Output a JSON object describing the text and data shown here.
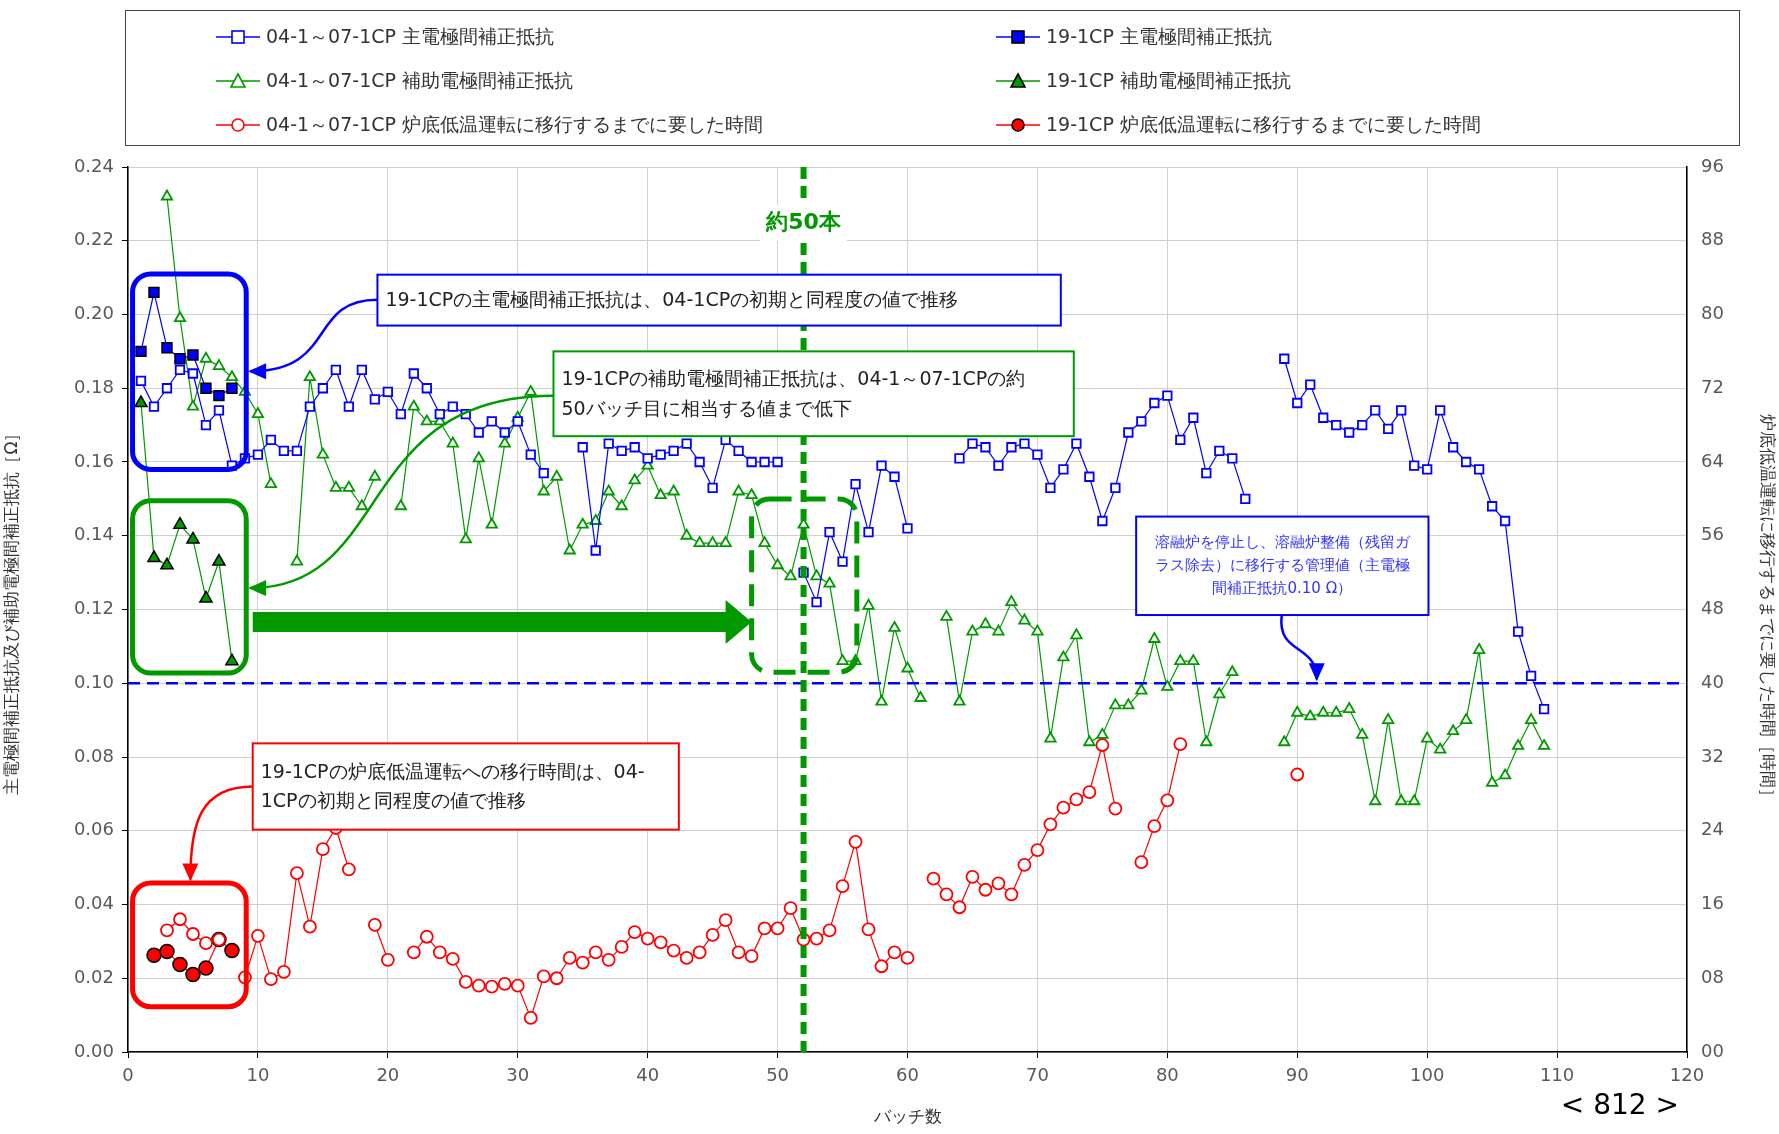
{
  "chart_data": {
    "type": "line",
    "x": [
      1,
      2,
      3,
      4,
      5,
      6,
      7,
      8,
      9,
      10,
      11,
      12,
      13,
      14,
      15,
      16,
      17,
      18,
      19,
      20,
      21,
      22,
      23,
      24,
      25,
      26,
      27,
      28,
      29,
      30,
      31,
      32,
      33,
      34,
      35,
      36,
      37,
      38,
      39,
      40,
      41,
      42,
      43,
      44,
      45,
      46,
      47,
      48,
      49,
      50,
      51,
      52,
      53,
      54,
      55,
      56,
      57,
      58,
      59,
      60,
      61,
      62,
      63,
      64,
      65,
      66,
      67,
      68,
      69,
      70,
      71,
      72,
      73,
      74,
      75,
      76,
      77,
      78,
      79,
      80,
      81,
      82,
      83,
      84,
      85,
      86,
      87,
      88,
      89,
      90,
      91,
      92,
      93,
      94,
      95,
      96,
      97,
      98,
      99,
      100,
      101,
      102,
      103,
      104,
      105,
      106,
      107,
      108,
      109
    ],
    "series": [
      {
        "name": "04-1～07-1CP  主電極間補正抵抗",
        "color": "#0000ff",
        "marker": "square",
        "values": [
          0.182,
          0.175,
          0.18,
          0.185,
          0.184,
          0.17,
          0.174,
          0.159,
          0.161,
          0.162,
          0.166,
          0.163,
          0.163,
          0.175,
          0.18,
          0.185,
          0.175,
          0.185,
          0.177,
          0.179,
          0.173,
          0.184,
          0.18,
          0.173,
          0.175,
          0.173,
          0.168,
          0.171,
          0.168,
          0.171,
          0.162,
          0.157,
          null,
          null,
          0.164,
          0.136,
          0.165,
          0.163,
          0.164,
          0.161,
          0.162,
          0.163,
          0.165,
          0.16,
          0.153,
          0.166,
          0.163,
          0.16,
          0.16,
          0.16,
          null,
          0.13,
          0.122,
          0.141,
          0.133,
          0.154,
          0.141,
          0.159,
          0.156,
          0.142,
          null,
          null,
          null,
          0.161,
          0.165,
          0.164,
          0.159,
          0.164,
          0.165,
          0.162,
          0.153,
          0.158,
          0.165,
          0.156,
          0.144,
          0.153,
          0.168,
          0.171,
          0.176,
          0.178,
          0.166,
          0.172,
          0.157,
          0.163,
          0.161,
          0.15,
          null,
          null,
          0.188,
          0.176,
          0.181,
          0.172,
          0.17,
          0.168,
          0.17,
          0.174,
          0.169,
          0.174,
          0.159,
          0.158,
          0.174,
          0.164,
          0.16,
          0.158,
          0.148,
          0.144,
          0.114,
          0.102,
          0.093
        ]
      },
      {
        "name": "19-1CP  主電極間補正抵抗",
        "color": "#0000ff",
        "marker": "square",
        "values": [
          0.19,
          0.206,
          0.191,
          0.188,
          0.189,
          0.18,
          0.178,
          0.18,
          null,
          null,
          null,
          null,
          null,
          null,
          null,
          null,
          null,
          null,
          null,
          null,
          null,
          null,
          null,
          null,
          null,
          null,
          null,
          null,
          null,
          null,
          null,
          null,
          null,
          null,
          null,
          null,
          null,
          null,
          null,
          null,
          null,
          null,
          null,
          null,
          null,
          null,
          null,
          null,
          null,
          null,
          null,
          null,
          null,
          null,
          null,
          null,
          null,
          null,
          null,
          null,
          null,
          null,
          null,
          null,
          null,
          null,
          null,
          null,
          null,
          null,
          null,
          null,
          null,
          null,
          null,
          null,
          null,
          null,
          null,
          null,
          null,
          null,
          null,
          null,
          null,
          null,
          null,
          null,
          null,
          null,
          null,
          null,
          null,
          null,
          null,
          null,
          null,
          null,
          null,
          null,
          null,
          null,
          null,
          null,
          null,
          null,
          null,
          null,
          null
        ]
      },
      {
        "name": "04-1～07-1CP  補助電極間補正抵抗",
        "color": "#009900",
        "marker": "triangle",
        "values": [
          null,
          null,
          0.232,
          0.199,
          0.175,
          0.188,
          0.186,
          0.183,
          0.179,
          0.173,
          0.154,
          null,
          0.133,
          0.183,
          0.162,
          0.153,
          0.153,
          0.148,
          0.156,
          null,
          0.148,
          0.175,
          0.171,
          0.171,
          0.165,
          0.139,
          0.161,
          0.143,
          0.165,
          0.172,
          0.179,
          0.152,
          0.156,
          0.136,
          0.143,
          0.144,
          0.152,
          0.148,
          0.155,
          0.159,
          0.151,
          0.152,
          0.14,
          0.138,
          0.138,
          0.138,
          0.152,
          0.151,
          0.138,
          0.132,
          0.129,
          0.143,
          0.129,
          0.127,
          0.106,
          0.106,
          0.121,
          0.095,
          0.115,
          0.104,
          0.096,
          null,
          0.118,
          0.095,
          0.114,
          0.116,
          0.114,
          0.122,
          0.117,
          0.114,
          0.085,
          0.107,
          0.113,
          0.084,
          0.086,
          0.094,
          0.094,
          0.098,
          0.112,
          0.099,
          0.106,
          0.106,
          0.084,
          0.097,
          0.103,
          null,
          null,
          null,
          0.084,
          0.092,
          0.091,
          0.092,
          0.092,
          0.093,
          0.086,
          0.068,
          0.09,
          0.068,
          0.068,
          0.085,
          0.082,
          0.087,
          0.09,
          0.109,
          0.073,
          0.075,
          0.083,
          0.09,
          0.083
        ]
      },
      {
        "name": "19-1CP  補助電極間補正抵抗",
        "color": "#009900",
        "marker": "triangle",
        "values": [
          0.176,
          0.134,
          0.132,
          0.143,
          0.139,
          0.123,
          0.133,
          0.106,
          null,
          null,
          null,
          null,
          null,
          null,
          null,
          null,
          null,
          null,
          null,
          null,
          null,
          null,
          null,
          null,
          null,
          null,
          null,
          null,
          null,
          null,
          null,
          null,
          null,
          null,
          null,
          null,
          null,
          null,
          null,
          null,
          null,
          null,
          null,
          null,
          null,
          null,
          null,
          null,
          null,
          null,
          null,
          null,
          null,
          null,
          null,
          null,
          null,
          null,
          null,
          null,
          null,
          null,
          null,
          null,
          null,
          null,
          null,
          null,
          null,
          null,
          null,
          null,
          null,
          null,
          null,
          null,
          null,
          null,
          null,
          null,
          null,
          null,
          null,
          null,
          null,
          null,
          null,
          null,
          null,
          null,
          null,
          null,
          null,
          null,
          null,
          null,
          null,
          null,
          null,
          null,
          null,
          null,
          null,
          null,
          null,
          null,
          null,
          null,
          null
        ]
      },
      {
        "name": "04-1～07-1CP  炉底低温運転に移行するまでに要した時間",
        "color": "#ff0000",
        "marker": "circle",
        "axis": "y2",
        "values": [
          null,
          null,
          13.2,
          14.4,
          12.8,
          11.8,
          12.2,
          null,
          8.1,
          12.6,
          7.9,
          8.7,
          19.4,
          13.6,
          22.0,
          24.3,
          19.8,
          null,
          13.8,
          10.0,
          null,
          10.8,
          12.5,
          10.8,
          10.1,
          7.6,
          7.2,
          7.1,
          7.4,
          7.2,
          3.7,
          8.2,
          8.0,
          10.2,
          9.7,
          10.8,
          10.0,
          11.4,
          13.0,
          12.3,
          11.9,
          11.0,
          10.2,
          10.8,
          12.7,
          14.3,
          10.8,
          10.4,
          13.4,
          13.4,
          15.6,
          12.2,
          12.3,
          13.2,
          18.0,
          22.8,
          13.3,
          9.3,
          10.8,
          10.2,
          null,
          18.8,
          17.1,
          15.7,
          19.0,
          17.6,
          18.3,
          17.1,
          20.3,
          21.9,
          24.7,
          26.5,
          27.4,
          28.2,
          33.3,
          26.4,
          null,
          20.6,
          24.5,
          27.3,
          33.4,
          null,
          null,
          null,
          null,
          null,
          null,
          null,
          null,
          30.1,
          null,
          null,
          null,
          null,
          null,
          null,
          null,
          null,
          null,
          null,
          null,
          null,
          null,
          null,
          null,
          null,
          null,
          null,
          null
        ]
      },
      {
        "name": "19-1CP  炉底低温運転に移行するまでに要した時間",
        "color": "#ff0000",
        "marker": "circle",
        "axis": "y2",
        "values": [
          null,
          10.5,
          10.9,
          9.5,
          8.4,
          9.1,
          12.2,
          11.0,
          null,
          null,
          null,
          null,
          null,
          null,
          null,
          null,
          null,
          null,
          null,
          null,
          null,
          null,
          null,
          null,
          null,
          null,
          null,
          null,
          null,
          null,
          null,
          null,
          null,
          null,
          null,
          null,
          null,
          null,
          null,
          null,
          null,
          null,
          null,
          null,
          null,
          null,
          null,
          null,
          null,
          null,
          null,
          null,
          null,
          null,
          null,
          null,
          null,
          null,
          null,
          null,
          null,
          null,
          null,
          null,
          null,
          null,
          null,
          null,
          null,
          null,
          null,
          null,
          null,
          null,
          null,
          null,
          null,
          null,
          null,
          null,
          null,
          null,
          null,
          null,
          null,
          null,
          null,
          null,
          null,
          null,
          null,
          null,
          null,
          null,
          null,
          null,
          null,
          null,
          null,
          null,
          null,
          null,
          null,
          null,
          null,
          null,
          null,
          null,
          null
        ]
      }
    ],
    "xlim": [
      0,
      120
    ],
    "xticks": [
      0,
      10,
      20,
      30,
      40,
      50,
      60,
      70,
      80,
      90,
      100,
      110,
      120
    ],
    "ylim": [
      0,
      0.24
    ],
    "yticks": [
      {
        "value": 0,
        "label": "0.00"
      },
      {
        "value": 0.02,
        "label": "0.02"
      },
      {
        "value": 0.04,
        "label": "0.04"
      },
      {
        "value": 0.06,
        "label": "0.06"
      },
      {
        "value": 0.08,
        "label": "0.08"
      },
      {
        "value": 0.1,
        "label": "0.10"
      },
      {
        "value": 0.12,
        "label": "0.12"
      },
      {
        "value": 0.14,
        "label": "0.14"
      },
      {
        "value": 0.16,
        "label": "0.16"
      },
      {
        "value": 0.18,
        "label": "0.18"
      },
      {
        "value": 0.2,
        "label": "0.20"
      },
      {
        "value": 0.22,
        "label": "0.22"
      },
      {
        "value": 0.24,
        "label": "0.24"
      }
    ],
    "y2lim": [
      0,
      96
    ],
    "y2ticks": [
      {
        "value": 0,
        "label": "00"
      },
      {
        "value": 8,
        "label": "08"
      },
      16,
      24,
      32,
      40,
      48,
      56,
      64,
      72,
      80,
      88,
      96
    ],
    "xlabel": "バッチ数",
    "ylabel": "主電極間補正抵抗及び補助電極間補正抵抗［Ω］",
    "y2label": "炉底低温運転に移行するまでに要した時間［時間］",
    "grid": true,
    "legend": "top",
    "ref_lines": [
      {
        "axis": "y",
        "value": 0.1,
        "color": "#0000ff",
        "line_style": "dashed"
      },
      {
        "axis": "x",
        "value": 52,
        "label": "約50本",
        "color": "#009900",
        "line_style": "dashed"
      }
    ],
    "annotations": [
      "19-1CPの主電極間補正抵抗は、04-1CPの初期と同程度の値で推移",
      "19-1CPの補助電極間補正抵抗は、04-1～07-1CPの約50バッチ目に相当する値まで低下",
      "19-1CPの炉底低温運転への移行時間は、04-1CPの初期と同程度の値で推移",
      {
        "text": "溶融炉を停止し、溶融炉整備（残留ガラス除去）に移行する管理値（主電極間補正抵抗0.10 Ω）",
        "x": 91.5,
        "y": 0.1
      },
      "< 812 >"
    ]
  }
}
